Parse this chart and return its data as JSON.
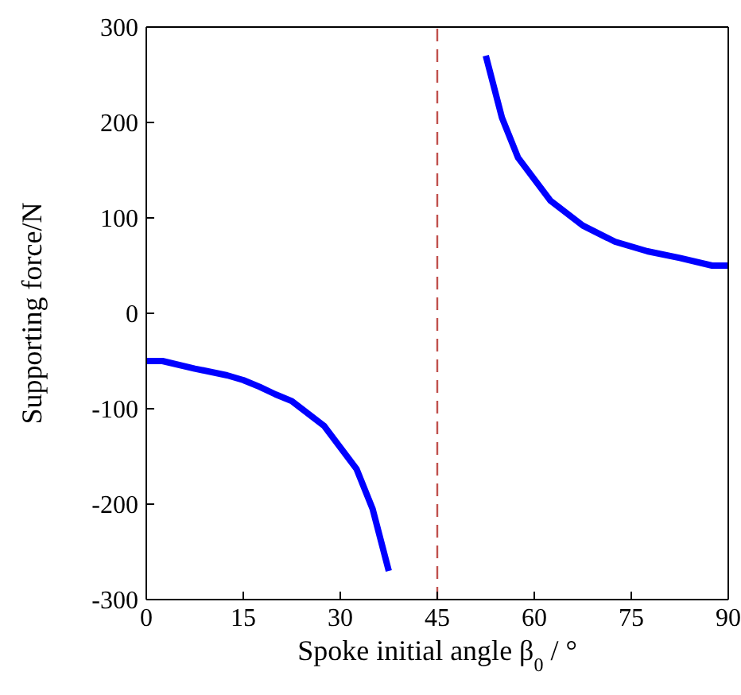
{
  "chart_data": {
    "type": "line",
    "xlabel": "Spoke initial angle β$_{0}$ / °",
    "ylabel": "Supporting force/N",
    "series": [
      {
        "color": "#0000ff",
        "x": [
          0,
          2.5,
          7.5,
          12.5,
          15,
          17.5,
          20,
          22.5,
          27.5,
          32.5,
          35,
          37.5
        ],
        "values": [
          -50,
          -50,
          -58,
          -65,
          -70,
          -77,
          -85,
          -92,
          -118,
          -163,
          -205,
          -270
        ]
      },
      {
        "color": "#0000ff",
        "x": [
          52.5,
          55,
          57.5,
          62.5,
          67.5,
          72.5,
          75,
          77.5,
          82.5,
          87.5,
          90
        ],
        "values": [
          270,
          205,
          163,
          118,
          92,
          75,
          70,
          65,
          58,
          50,
          50
        ]
      }
    ],
    "xlim": [
      0,
      90
    ],
    "xticks": [
      0,
      15,
      30,
      45,
      60,
      75,
      90
    ],
    "ylim": [
      -300,
      300
    ],
    "yticks": [
      -300,
      -200,
      -100,
      0,
      100,
      200,
      300
    ],
    "ref_lines": [
      {
        "axis": "x",
        "value": 45,
        "color": "#c0504d",
        "line_style": "dashed"
      }
    ],
    "marker": "none",
    "line_style": "solid"
  }
}
